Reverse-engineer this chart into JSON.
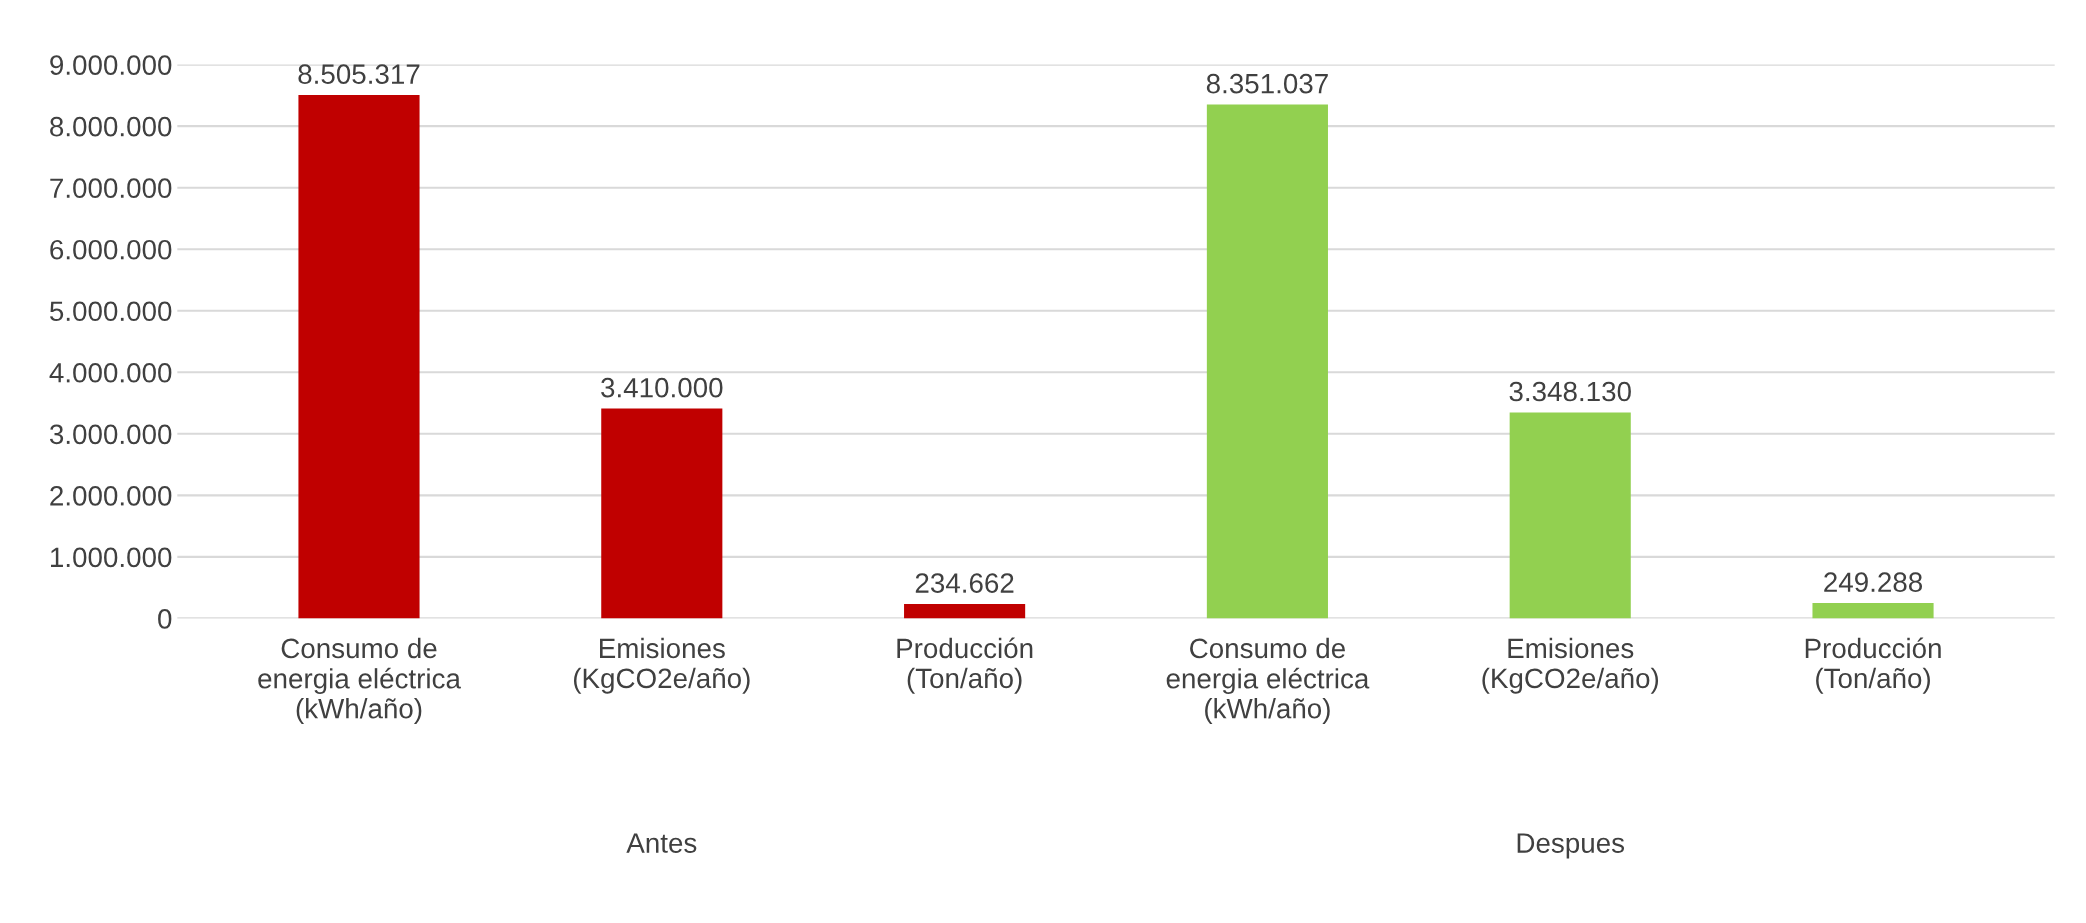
{
  "chart_data": {
    "type": "bar",
    "categories": [
      "Consumo de\nenergia eléctrica\n(kWh/año)",
      "Emisiones\n(KgCO2e/año)",
      "Producción\n(Ton/año)",
      "Consumo de\nenergia eléctrica\n(kWh/año)",
      "Emisiones\n(KgCO2e/año)",
      "Producción\n(Ton/año)"
    ],
    "values": [
      8505317,
      3410000,
      234662,
      8351037,
      3348130,
      249288
    ],
    "colors": [
      "#c00000",
      "#c00000",
      "#c00000",
      "#92d050",
      "#92d050",
      "#92d050"
    ],
    "value_labels": [
      "8.505.317",
      "3.410.000",
      "234.662",
      "8.351.037",
      "3.348.130",
      "249.288"
    ],
    "annotations": [
      "Antes",
      "Despues"
    ],
    "ylim": [
      0,
      9000000
    ],
    "yticks": [
      {
        "value": 0,
        "label": "0"
      },
      {
        "value": 1000000,
        "label": "1.000.000"
      },
      {
        "value": 2000000,
        "label": "2.000.000"
      },
      {
        "value": 3000000,
        "label": "3.000.000"
      },
      {
        "value": 4000000,
        "label": "4.000.000"
      },
      {
        "value": 5000000,
        "label": "5.000.000"
      },
      {
        "value": 6000000,
        "label": "6.000.000"
      },
      {
        "value": 7000000,
        "label": "7.000.000"
      },
      {
        "value": 8000000,
        "label": "8.000.000"
      },
      {
        "value": 9000000,
        "label": "9.000.000"
      }
    ],
    "grid": "y"
  }
}
